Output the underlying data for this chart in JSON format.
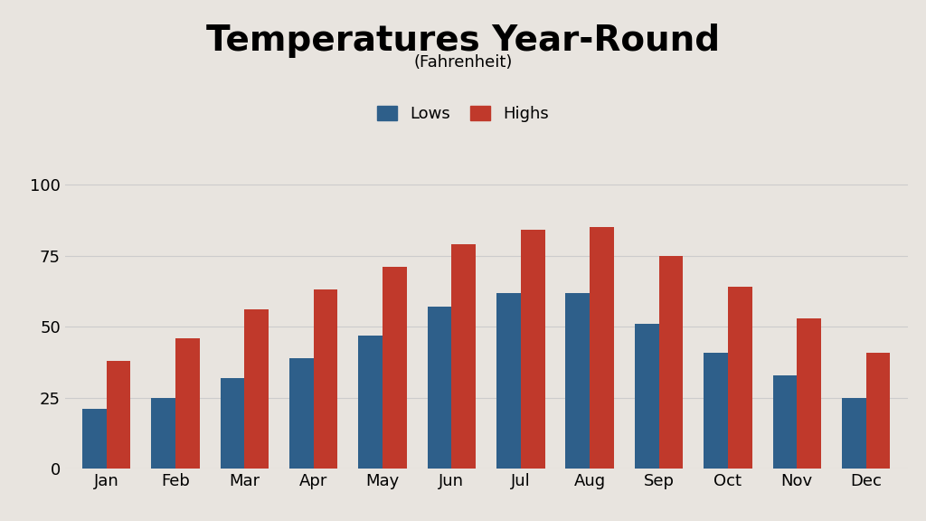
{
  "title": "Temperatures Year-Round",
  "subtitle": "(Fahrenheit)",
  "months": [
    "Jan",
    "Feb",
    "Mar",
    "Apr",
    "May",
    "Jun",
    "Jul",
    "Aug",
    "Sep",
    "Oct",
    "Nov",
    "Dec"
  ],
  "lows": [
    21,
    25,
    32,
    39,
    47,
    57,
    62,
    62,
    51,
    41,
    33,
    25
  ],
  "highs": [
    38,
    46,
    56,
    63,
    71,
    79,
    84,
    85,
    75,
    64,
    53,
    41
  ],
  "low_color": "#2E5F8A",
  "high_color": "#C0392B",
  "background_color": "#E8E4DF",
  "yticks": [
    0,
    25,
    50,
    75,
    100
  ],
  "ylim": [
    0,
    110
  ],
  "bar_width": 0.35,
  "title_fontsize": 28,
  "subtitle_fontsize": 13,
  "legend_fontsize": 13,
  "tick_fontsize": 13,
  "grid_color": "#CCCCCC"
}
